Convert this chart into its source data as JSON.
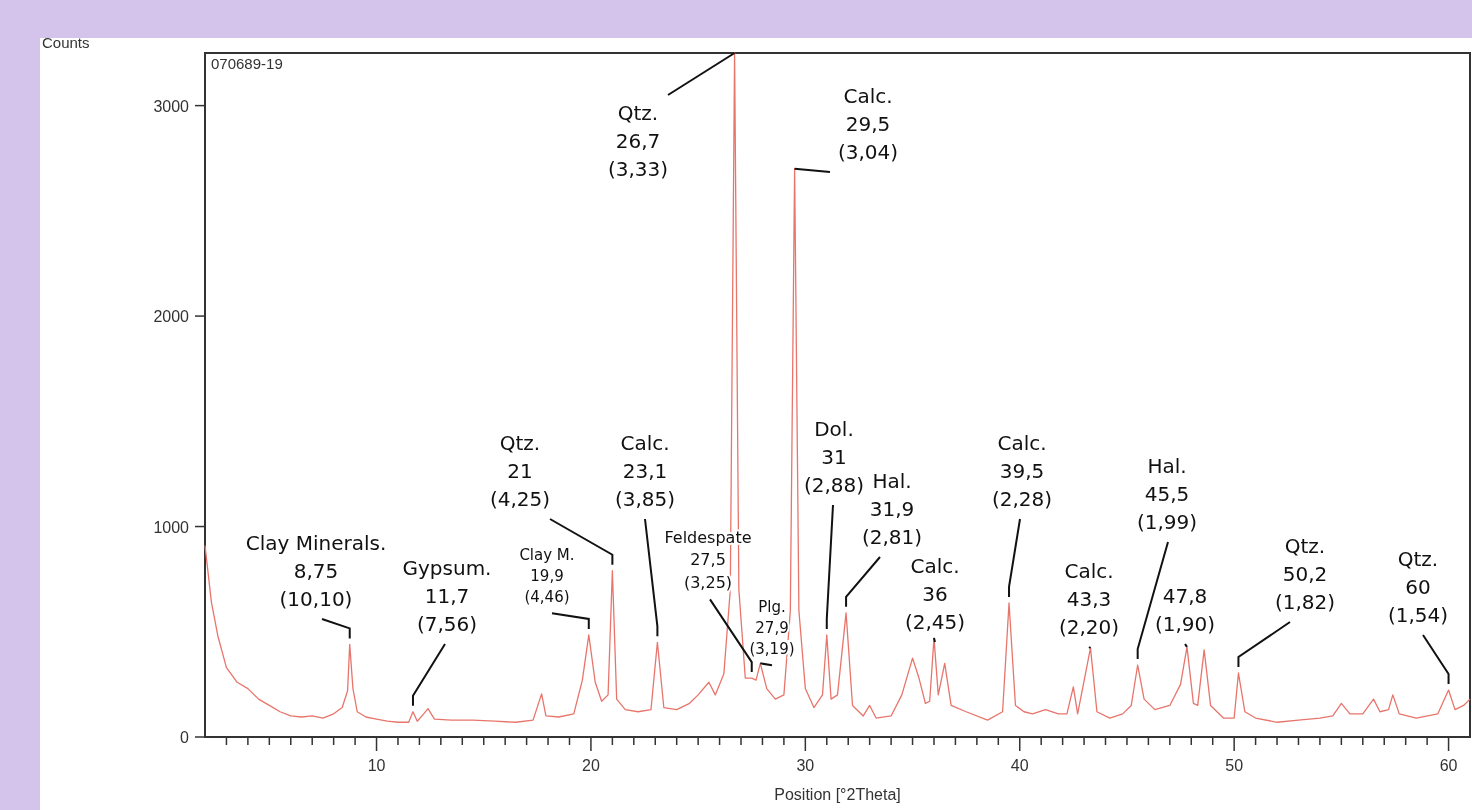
{
  "chart_data": {
    "type": "line",
    "xlabel": "Position [°2Theta]",
    "ylabel": "Counts",
    "xlim": [
      2,
      61
    ],
    "ylim": [
      0,
      3250
    ],
    "xticks": [
      {
        "value": 3,
        "label": null
      },
      {
        "value": 4,
        "label": null
      },
      {
        "value": 5,
        "label": null
      },
      {
        "value": 6,
        "label": null
      },
      {
        "value": 7,
        "label": null
      },
      {
        "value": 8,
        "label": null
      },
      {
        "value": 9,
        "label": null
      },
      10,
      {
        "value": 11,
        "label": null
      },
      {
        "value": 12,
        "label": null
      },
      {
        "value": 13,
        "label": null
      },
      {
        "value": 14,
        "label": null
      },
      {
        "value": 15,
        "label": null
      },
      {
        "value": 16,
        "label": null
      },
      {
        "value": 17,
        "label": null
      },
      {
        "value": 18,
        "label": null
      },
      {
        "value": 19,
        "label": null
      },
      20,
      {
        "value": 21,
        "label": null
      },
      {
        "value": 22,
        "label": null
      },
      {
        "value": 23,
        "label": null
      },
      {
        "value": 24,
        "label": null
      },
      {
        "value": 25,
        "label": null
      },
      {
        "value": 26,
        "label": null
      },
      {
        "value": 27,
        "label": null
      },
      {
        "value": 28,
        "label": null
      },
      {
        "value": 29,
        "label": null
      },
      30,
      {
        "value": 31,
        "label": null
      },
      {
        "value": 32,
        "label": null
      },
      {
        "value": 33,
        "label": null
      },
      {
        "value": 34,
        "label": null
      },
      {
        "value": 35,
        "label": null
      },
      {
        "value": 36,
        "label": null
      },
      {
        "value": 37,
        "label": null
      },
      {
        "value": 38,
        "label": null
      },
      {
        "value": 39,
        "label": null
      },
      40,
      {
        "value": 41,
        "label": null
      },
      {
        "value": 42,
        "label": null
      },
      {
        "value": 43,
        "label": null
      },
      {
        "value": 44,
        "label": null
      },
      {
        "value": 45,
        "label": null
      },
      {
        "value": 46,
        "label": null
      },
      {
        "value": 47,
        "label": null
      },
      {
        "value": 48,
        "label": null
      },
      {
        "value": 49,
        "label": null
      },
      50,
      {
        "value": 51,
        "label": null
      },
      {
        "value": 52,
        "label": null
      },
      {
        "value": 53,
        "label": null
      },
      {
        "value": 54,
        "label": null
      },
      {
        "value": 55,
        "label": null
      },
      {
        "value": 56,
        "label": null
      },
      {
        "value": 57,
        "label": null
      },
      {
        "value": 58,
        "label": null
      },
      {
        "value": 59,
        "label": null
      },
      60
    ],
    "yticks": [
      0,
      1000,
      2000,
      3000
    ],
    "grid": false,
    "marker": "none",
    "line_style": "solid",
    "series": [
      {
        "color": "#e8756c",
        "x": [
          2.0,
          2.3,
          2.6,
          3.0,
          3.5,
          4.0,
          4.5,
          5.0,
          5.5,
          6.0,
          6.5,
          7.0,
          7.5,
          8.0,
          8.4,
          8.65,
          8.75,
          8.9,
          9.1,
          9.5,
          10.0,
          10.5,
          11.0,
          11.5,
          11.7,
          11.9,
          12.2,
          12.4,
          12.7,
          13.5,
          14.5,
          15.5,
          16.5,
          17.3,
          17.7,
          17.9,
          18.5,
          19.2,
          19.6,
          19.9,
          20.2,
          20.5,
          20.8,
          21.0,
          21.2,
          21.6,
          22.2,
          22.8,
          23.1,
          23.4,
          24.0,
          24.6,
          25.0,
          25.5,
          25.8,
          26.2,
          26.5,
          26.7,
          26.9,
          27.2,
          27.5,
          27.7,
          27.9,
          28.2,
          28.6,
          29.0,
          29.3,
          29.5,
          29.7,
          30.0,
          30.4,
          30.8,
          31.0,
          31.2,
          31.5,
          31.9,
          32.2,
          32.7,
          33.0,
          33.3,
          34.0,
          34.5,
          35.0,
          35.3,
          35.6,
          35.8,
          36.0,
          36.2,
          36.5,
          36.8,
          37.5,
          38.5,
          39.2,
          39.5,
          39.8,
          40.2,
          40.6,
          41.2,
          41.8,
          42.2,
          42.5,
          42.7,
          43.3,
          43.6,
          44.2,
          44.8,
          45.2,
          45.5,
          45.8,
          46.3,
          47.0,
          47.5,
          47.8,
          48.1,
          48.3,
          48.6,
          48.9,
          49.5,
          50.0,
          50.2,
          50.5,
          51.0,
          52.0,
          53.0,
          54.0,
          54.6,
          55.0,
          55.4,
          56.0,
          56.5,
          56.8,
          57.2,
          57.4,
          57.7,
          58.5,
          59.5,
          60.0,
          60.3,
          60.7,
          61.0
        ],
        "values": [
          910,
          640,
          480,
          330,
          260,
          230,
          180,
          150,
          120,
          100,
          95,
          100,
          90,
          110,
          140,
          220,
          440,
          230,
          120,
          95,
          85,
          75,
          70,
          70,
          120,
          75,
          110,
          135,
          85,
          80,
          80,
          75,
          70,
          80,
          205,
          100,
          95,
          110,
          270,
          485,
          260,
          170,
          200,
          790,
          180,
          130,
          120,
          130,
          450,
          140,
          130,
          160,
          200,
          260,
          200,
          300,
          700,
          3250,
          700,
          280,
          280,
          270,
          350,
          230,
          180,
          200,
          600,
          2700,
          600,
          230,
          140,
          200,
          485,
          180,
          200,
          590,
          150,
          100,
          150,
          90,
          100,
          200,
          375,
          280,
          160,
          170,
          470,
          200,
          350,
          150,
          120,
          80,
          120,
          637,
          150,
          120,
          110,
          130,
          110,
          110,
          238,
          110,
          423,
          120,
          90,
          110,
          150,
          342,
          180,
          130,
          150,
          250,
          428,
          160,
          150,
          414,
          150,
          90,
          90,
          304,
          120,
          90,
          70,
          80,
          90,
          100,
          160,
          110,
          110,
          180,
          120,
          130,
          200,
          110,
          90,
          110,
          223,
          130,
          150,
          180
        ]
      }
    ],
    "annotations": [
      "070689-19",
      {
        "text": "Clay Minerals.\n8,75\n(10,10)",
        "x": 8.75,
        "y": 440
      },
      {
        "text": "Gypsum.\n11,7\n(7,56)",
        "x": 11.7,
        "y": 120
      },
      {
        "text": "Clay M.\n19,9\n(4,46)",
        "x": 19.9,
        "y": 485
      },
      {
        "text": "Qtz.\n21\n(4,25)",
        "x": 21,
        "y": 790
      },
      {
        "text": "Calc.\n23,1\n(3,85)",
        "x": 23.1,
        "y": 450
      },
      {
        "text": "Feldespate\n27,5\n(3,25)",
        "x": 27.5,
        "y": 280
      },
      {
        "text": "Plg.\n27,9\n(3,19)",
        "x": 27.9,
        "y": 350
      },
      {
        "text": "Qtz.\n26,7\n(3,33)",
        "x": 26.7,
        "y": 3250
      },
      {
        "text": "Calc.\n29,5\n(3,04)",
        "x": 29.5,
        "y": 2700
      },
      {
        "text": "Dol.\n31\n(2,88)",
        "x": 31,
        "y": 485
      },
      {
        "text": "Hal.\n31,9\n(2,81)",
        "x": 31.9,
        "y": 590
      },
      {
        "text": "Calc.\n36\n(2,45)",
        "x": 36,
        "y": 470
      },
      {
        "text": "Calc.\n39,5\n(2,28)",
        "x": 39.5,
        "y": 637
      },
      {
        "text": "Calc.\n43,3\n(2,20)",
        "x": 43.3,
        "y": 423
      },
      {
        "text": "Hal.\n45,5\n(1,99)",
        "x": 45.5,
        "y": 342
      },
      {
        "text": "47,8\n(1,90)",
        "x": 47.8,
        "y": 428
      },
      {
        "text": "Qtz.\n50,2\n(1,82)",
        "x": 50.2,
        "y": 304
      },
      {
        "text": "Qtz.\n60\n(1,54)",
        "x": 60,
        "y": 223
      }
    ]
  }
}
